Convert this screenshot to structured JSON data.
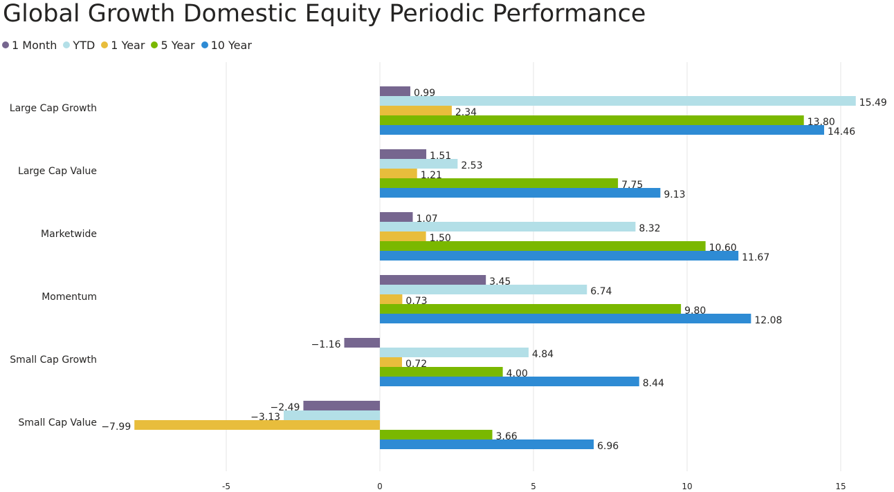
{
  "title": "Global Growth Domestic Equity Periodic Performance",
  "colors": {
    "text": "#252423",
    "grid": "#e6e6e6"
  },
  "chart_data": {
    "type": "bar",
    "orientation": "horizontal",
    "title": "Global Growth Domestic Equity Periodic Performance",
    "categories": [
      "Large Cap Growth",
      "Large Cap Value",
      "Marketwide",
      "Momentum",
      "Small Cap Growth",
      "Small Cap Value"
    ],
    "series": [
      {
        "name": "1 Month",
        "color": "#76668f",
        "values": [
          0.99,
          1.51,
          1.07,
          3.45,
          -1.16,
          -2.49
        ]
      },
      {
        "name": "YTD",
        "color": "#b3dfe7",
        "values": [
          15.49,
          2.53,
          8.32,
          6.74,
          4.84,
          -3.13
        ]
      },
      {
        "name": "1 Year",
        "color": "#e8bd3c",
        "values": [
          2.34,
          1.21,
          1.5,
          0.73,
          0.72,
          -7.99
        ]
      },
      {
        "name": "5 Year",
        "color": "#7ab800",
        "values": [
          13.8,
          7.75,
          10.6,
          9.8,
          4.0,
          3.66
        ]
      },
      {
        "name": "10 Year",
        "color": "#2e8bd4",
        "values": [
          14.46,
          9.13,
          11.67,
          12.08,
          8.44,
          6.96
        ]
      }
    ],
    "xlim": [
      -10,
      16
    ],
    "xticks": [
      -5,
      0,
      5,
      10,
      15
    ],
    "grid": true,
    "legend": "top-left",
    "data_labels": true
  }
}
